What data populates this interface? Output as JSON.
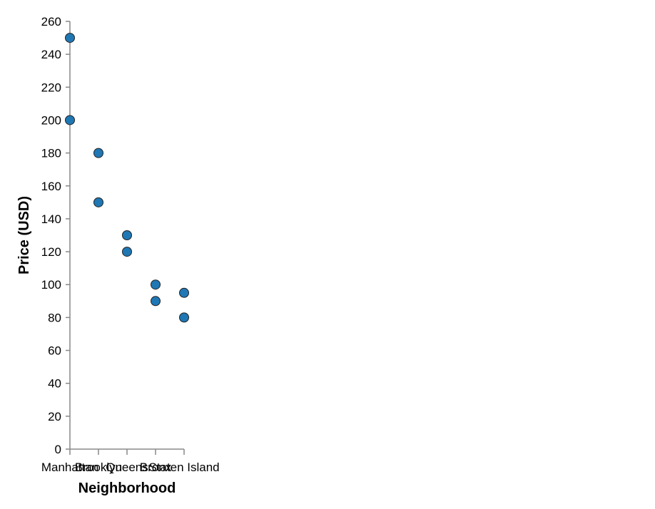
{
  "chart_data": {
    "type": "scatter",
    "title": "",
    "xlabel": "Neighborhood",
    "ylabel": "Price (USD)",
    "categories": [
      "Manhattan",
      "Brooklyn",
      "Queens",
      "Bronx",
      "Staten Island"
    ],
    "ylim": [
      0,
      260
    ],
    "yticks": [
      0,
      20,
      40,
      60,
      80,
      100,
      120,
      140,
      160,
      180,
      200,
      220,
      240,
      260
    ],
    "grid": false,
    "legend": "none",
    "point_color": "#1f77b4",
    "series": [
      {
        "points": [
          {
            "x": "Manhattan",
            "y": 250
          },
          {
            "x": "Manhattan",
            "y": 200
          },
          {
            "x": "Brooklyn",
            "y": 180
          },
          {
            "x": "Brooklyn",
            "y": 150
          },
          {
            "x": "Queens",
            "y": 130
          },
          {
            "x": "Queens",
            "y": 120
          },
          {
            "x": "Bronx",
            "y": 100
          },
          {
            "x": "Bronx",
            "y": 90
          },
          {
            "x": "Staten Island",
            "y": 95
          },
          {
            "x": "Staten Island",
            "y": 80
          }
        ]
      }
    ]
  }
}
